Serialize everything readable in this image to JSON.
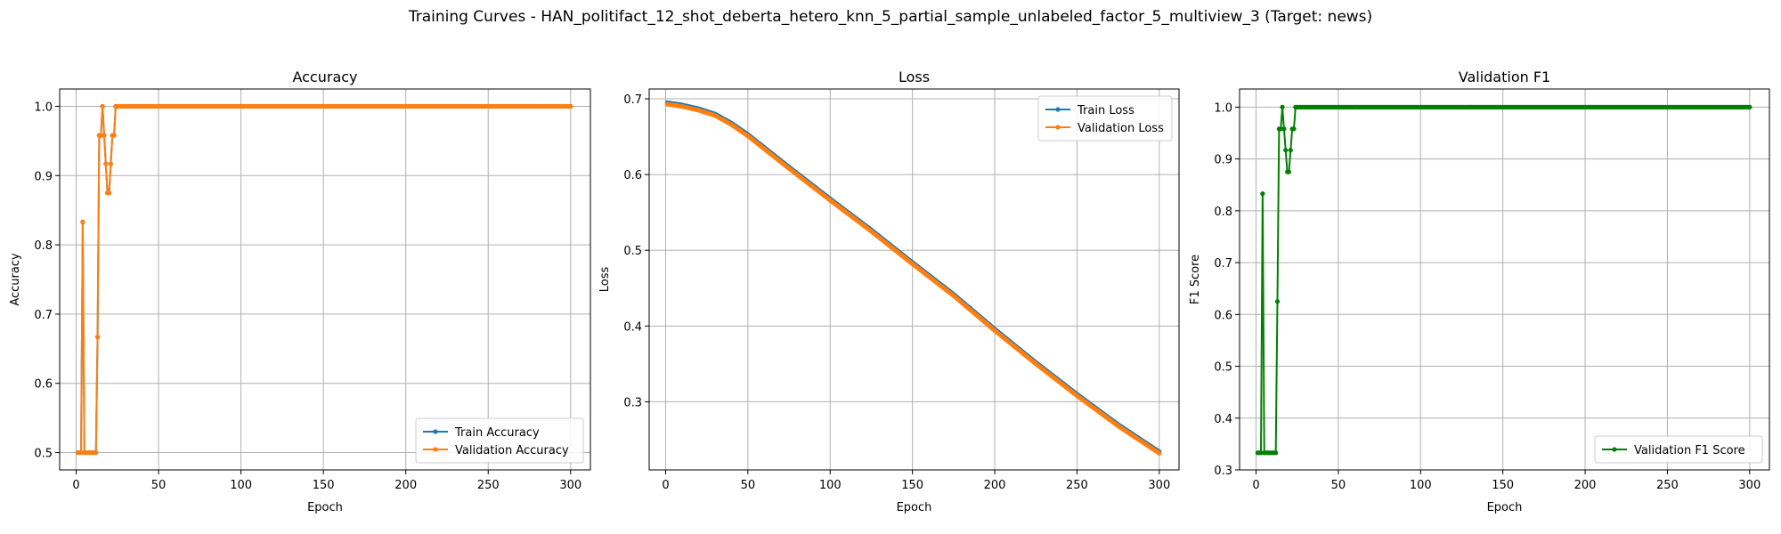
{
  "figure": {
    "suptitle": "Training Curves - HAN_politifact_12_shot_deberta_hetero_knn_5_partial_sample_unlabeled_factor_5_multiview_3 (Target: news)"
  },
  "colors": {
    "blue": "#1f77b4",
    "orange": "#ff7f0e",
    "green": "#008000",
    "grid": "#b0b0b0"
  },
  "chart_data": [
    {
      "type": "line",
      "title": "Accuracy",
      "xlabel": "Epoch",
      "ylabel": "Accuracy",
      "xlim": [
        -10,
        312
      ],
      "ylim": [
        0.475,
        1.025
      ],
      "xticks": [
        0,
        50,
        100,
        150,
        200,
        250,
        300
      ],
      "yticks": [
        0.5,
        0.6,
        0.7,
        0.8,
        0.9,
        1.0
      ],
      "ytick_labels": [
        "0.5",
        "0.6",
        "0.7",
        "0.8",
        "0.9",
        "1.0"
      ],
      "grid": true,
      "legend": "lower right",
      "epochs": 300,
      "series": [
        {
          "name": "Train Accuracy",
          "color": "#1f77b4",
          "marker": "dot",
          "early": [
            0.5,
            0.5,
            0.5,
            0.833,
            0.5,
            0.5,
            0.5,
            0.5,
            0.5,
            0.5,
            0.5,
            0.5,
            0.667,
            0.958,
            0.958,
            1.0,
            0.958,
            0.917,
            0.875,
            0.875,
            0.917,
            0.958,
            0.958,
            1.0
          ],
          "rest": 1.0
        },
        {
          "name": "Validation Accuracy",
          "color": "#ff7f0e",
          "marker": "dot",
          "early": [
            0.5,
            0.5,
            0.5,
            0.833,
            0.5,
            0.5,
            0.5,
            0.5,
            0.5,
            0.5,
            0.5,
            0.5,
            0.667,
            0.958,
            0.958,
            1.0,
            0.958,
            0.917,
            0.875,
            0.875,
            0.917,
            0.958,
            0.958,
            1.0
          ],
          "rest": 1.0
        }
      ]
    },
    {
      "type": "line",
      "title": "Loss",
      "xlabel": "Epoch",
      "ylabel": "Loss",
      "xlim": [
        -10,
        312
      ],
      "ylim": [
        0.21,
        0.713
      ],
      "xticks": [
        0,
        50,
        100,
        150,
        200,
        250,
        300
      ],
      "yticks": [
        0.3,
        0.4,
        0.5,
        0.6,
        0.7
      ],
      "ytick_labels": [
        "0.3",
        "0.4",
        "0.5",
        "0.6",
        "0.7"
      ],
      "grid": true,
      "legend": "upper right",
      "epochs": 300,
      "keypoints": [
        [
          1,
          0.693
        ],
        [
          10,
          0.69
        ],
        [
          20,
          0.685
        ],
        [
          30,
          0.678
        ],
        [
          40,
          0.666
        ],
        [
          50,
          0.651
        ],
        [
          75,
          0.608
        ],
        [
          100,
          0.566
        ],
        [
          125,
          0.525
        ],
        [
          150,
          0.482
        ],
        [
          175,
          0.44
        ],
        [
          200,
          0.394
        ],
        [
          225,
          0.35
        ],
        [
          250,
          0.308
        ],
        [
          275,
          0.268
        ],
        [
          300,
          0.232
        ]
      ],
      "series": [
        {
          "name": "Train Loss",
          "color": "#1f77b4",
          "marker": "dot",
          "offset": 0.002
        },
        {
          "name": "Validation Loss",
          "color": "#ff7f0e",
          "marker": "dot",
          "offset": 0.0
        }
      ]
    },
    {
      "type": "line",
      "title": "Validation F1",
      "xlabel": "Epoch",
      "ylabel": "F1 Score",
      "xlim": [
        -10,
        312
      ],
      "ylim": [
        0.3,
        1.035
      ],
      "xticks": [
        0,
        50,
        100,
        150,
        200,
        250,
        300
      ],
      "yticks": [
        0.3,
        0.4,
        0.5,
        0.6,
        0.7,
        0.8,
        0.9,
        1.0
      ],
      "ytick_labels": [
        "0.3",
        "0.4",
        "0.5",
        "0.6",
        "0.7",
        "0.8",
        "0.9",
        "1.0"
      ],
      "grid": true,
      "legend": "lower right",
      "epochs": 300,
      "series": [
        {
          "name": "Validation F1 Score",
          "color": "#008000",
          "marker": "dot",
          "early": [
            0.333,
            0.333,
            0.333,
            0.833,
            0.333,
            0.333,
            0.333,
            0.333,
            0.333,
            0.333,
            0.333,
            0.333,
            0.625,
            0.958,
            0.958,
            1.0,
            0.958,
            0.917,
            0.875,
            0.875,
            0.917,
            0.958,
            0.958,
            1.0
          ],
          "rest": 1.0
        }
      ]
    }
  ]
}
